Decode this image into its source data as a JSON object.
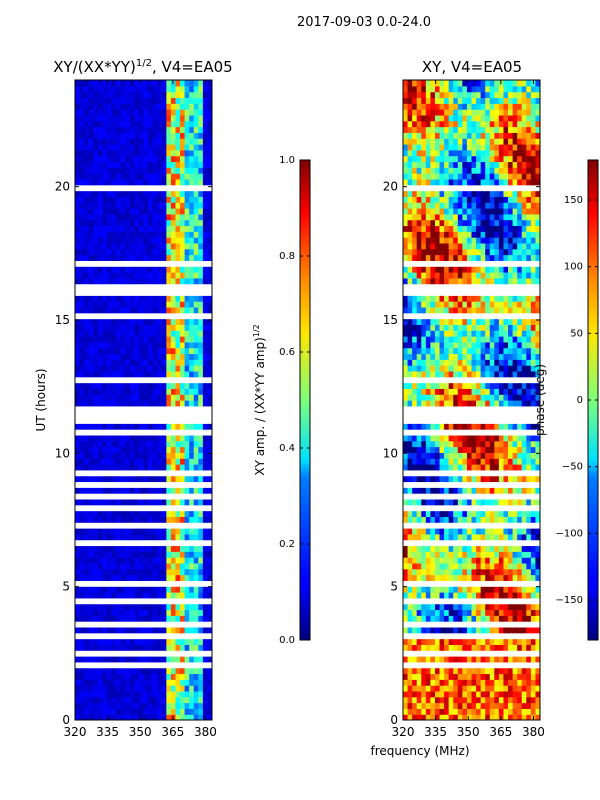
{
  "figure": {
    "suptitle": "2017-09-03 0.0-24.0",
    "shared_xlabel": "frequency (MHz)"
  },
  "chart_data": [
    {
      "type": "heatmap",
      "title_main": "XY/(XX*YY)",
      "title_sup": "1/2",
      "title_tail": ", V4=EA05",
      "xlabel": "",
      "ylabel": "UT (hours)",
      "xlim": [
        320,
        383
      ],
      "ylim": [
        0,
        24
      ],
      "xticks": [
        320,
        335,
        350,
        365,
        380
      ],
      "yticks": [
        0,
        5,
        10,
        15,
        20
      ],
      "colorbar": {
        "label_main": "XY amp. / (XX*YY amp)",
        "label_sup": "1/2",
        "range": [
          0.0,
          1.0
        ],
        "ticks": [
          "0.0",
          "0.2",
          "0.4",
          "0.6",
          "0.8",
          "1.0"
        ],
        "colormap": "jet"
      }
    },
    {
      "type": "heatmap",
      "title": "XY, V4=EA05",
      "xlabel": "frequency (MHz)",
      "ylabel": "",
      "xlim": [
        320,
        383
      ],
      "ylim": [
        0,
        24
      ],
      "xticks": [
        320,
        335,
        350,
        365,
        380
      ],
      "yticks": [
        0,
        5,
        10,
        15,
        20
      ],
      "colorbar": {
        "label": "phase (deg)",
        "range": [
          -180,
          180
        ],
        "ticks": [
          "−150",
          "−100",
          "−50",
          "0",
          "50",
          "100",
          "150"
        ],
        "colormap": "jet"
      }
    }
  ],
  "colors": {
    "jet_low": "#00007f",
    "jet_mid": "#7fff7f",
    "jet_high": "#7f0000",
    "axis": "#000000"
  }
}
